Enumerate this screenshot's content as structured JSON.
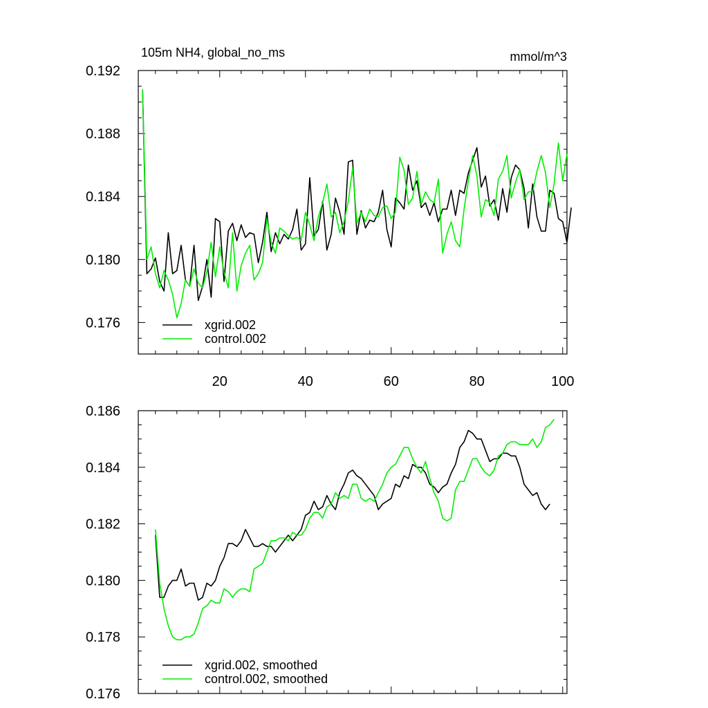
{
  "chart_data": [
    {
      "type": "line",
      "title": "105m NH4, global_no_ms",
      "units": "mmol/m^3",
      "xlabel": "",
      "ylabel": "",
      "xlim": [
        1,
        101
      ],
      "ylim": [
        0.174,
        0.192
      ],
      "yticks": [
        0.176,
        0.18,
        0.184,
        0.188,
        0.192
      ],
      "ytick_labels": [
        "0.176",
        "0.180",
        "0.184",
        "0.188",
        "0.192"
      ],
      "xticks": [
        20,
        40,
        60,
        80,
        100
      ],
      "xtick_labels": [
        "20",
        "40",
        "60",
        "80",
        "100"
      ],
      "legend_position": "bottom-left",
      "series": [
        {
          "name": "xgrid.002",
          "color": "#000000",
          "x_start": 2,
          "values": [
            0.1908,
            0.1791,
            0.1794,
            0.1801,
            0.1786,
            0.178,
            0.1817,
            0.1791,
            0.1793,
            0.1809,
            0.1787,
            0.1783,
            0.1809,
            0.1774,
            0.1783,
            0.18,
            0.1776,
            0.1826,
            0.1824,
            0.1786,
            0.1818,
            0.1823,
            0.1812,
            0.1822,
            0.1814,
            0.1817,
            0.1816,
            0.1798,
            0.1811,
            0.183,
            0.1805,
            0.1817,
            0.181,
            0.1816,
            0.1813,
            0.1819,
            0.1832,
            0.1806,
            0.181,
            0.1852,
            0.1815,
            0.1819,
            0.1837,
            0.1806,
            0.1816,
            0.1839,
            0.183,
            0.1816,
            0.1862,
            0.1863,
            0.1816,
            0.1831,
            0.182,
            0.1825,
            0.1824,
            0.183,
            0.1844,
            0.1819,
            0.1808,
            0.1839,
            0.1836,
            0.1832,
            0.186,
            0.1844,
            0.185,
            0.1833,
            0.1836,
            0.1828,
            0.1836,
            0.1824,
            0.1832,
            0.1832,
            0.1844,
            0.1828,
            0.1844,
            0.1842,
            0.1855,
            0.1863,
            0.1871,
            0.1846,
            0.1853,
            0.1834,
            0.1838,
            0.1825,
            0.1845,
            0.183,
            0.1852,
            0.186,
            0.1857,
            0.1845,
            0.182,
            0.1848,
            0.1827,
            0.1818,
            0.1818,
            0.1844,
            0.1842,
            0.1826,
            0.1824,
            0.1811,
            0.1833
          ]
        },
        {
          "name": "control.002",
          "color": "#00ee00",
          "x_start": 2,
          "values": [
            0.1908,
            0.18,
            0.1808,
            0.1791,
            0.1782,
            0.1793,
            0.1787,
            0.1778,
            0.1763,
            0.1772,
            0.1787,
            0.1783,
            0.1794,
            0.1785,
            0.1782,
            0.1792,
            0.1811,
            0.1789,
            0.1808,
            0.1792,
            0.1782,
            0.1817,
            0.178,
            0.1796,
            0.1804,
            0.1809,
            0.1787,
            0.1791,
            0.1798,
            0.1826,
            0.1811,
            0.1804,
            0.182,
            0.1818,
            0.1815,
            0.1813,
            0.1814,
            0.1812,
            0.183,
            0.1822,
            0.1812,
            0.1827,
            0.1836,
            0.1848,
            0.1827,
            0.183,
            0.1817,
            0.1824,
            0.1837,
            0.1858,
            0.1823,
            0.183,
            0.1824,
            0.1832,
            0.1828,
            0.1827,
            0.1833,
            0.1834,
            0.1826,
            0.183,
            0.1865,
            0.1857,
            0.1835,
            0.1839,
            0.1856,
            0.1835,
            0.1843,
            0.1838,
            0.1836,
            0.1851,
            0.1804,
            0.1816,
            0.1824,
            0.1812,
            0.1808,
            0.1832,
            0.185,
            0.1866,
            0.1853,
            0.1827,
            0.1838,
            0.1836,
            0.1828,
            0.1851,
            0.1856,
            0.1866,
            0.1839,
            0.1849,
            0.1857,
            0.1838,
            0.1843,
            0.1843,
            0.1856,
            0.1866,
            0.1855,
            0.1833,
            0.1848,
            0.1874,
            0.185,
            0.1867
          ]
        }
      ]
    },
    {
      "type": "line",
      "title": "",
      "xlabel": "",
      "ylabel": "",
      "xlim": [
        1,
        101
      ],
      "ylim": [
        0.176,
        0.186
      ],
      "yticks": [
        0.176,
        0.178,
        0.18,
        0.182,
        0.184,
        0.186
      ],
      "ytick_labels": [
        "0.176",
        "0.178",
        "0.180",
        "0.182",
        "0.184",
        "0.186"
      ],
      "xticks": [
        20,
        40,
        60,
        80,
        100
      ],
      "legend_position": "bottom-left",
      "series": [
        {
          "name": "xgrid.002, smoothed",
          "color": "#000000",
          "x_start": 5,
          "values": [
            0.1816,
            0.1794,
            0.1794,
            0.1798,
            0.18,
            0.18,
            0.1804,
            0.1798,
            0.1799,
            0.1799,
            0.1793,
            0.1794,
            0.1799,
            0.1798,
            0.18,
            0.1805,
            0.1808,
            0.1813,
            0.1813,
            0.1812,
            0.1814,
            0.1818,
            0.1815,
            0.1812,
            0.1812,
            0.1813,
            0.1812,
            0.1812,
            0.181,
            0.1812,
            0.1814,
            0.1816,
            0.1814,
            0.1816,
            0.1818,
            0.1823,
            0.1824,
            0.1828,
            0.1825,
            0.1826,
            0.183,
            0.1827,
            0.1825,
            0.1831,
            0.1834,
            0.1838,
            0.1839,
            0.1837,
            0.1836,
            0.1834,
            0.1832,
            0.183,
            0.1825,
            0.1827,
            0.1828,
            0.1829,
            0.1834,
            0.1833,
            0.1837,
            0.1836,
            0.1841,
            0.184,
            0.184,
            0.1838,
            0.1834,
            0.1833,
            0.1831,
            0.1833,
            0.1834,
            0.1838,
            0.1841,
            0.1847,
            0.1849,
            0.1853,
            0.1852,
            0.185,
            0.185,
            0.1846,
            0.1842,
            0.1843,
            0.1843,
            0.1845,
            0.1845,
            0.1844,
            0.1844,
            0.184,
            0.1834,
            0.1832,
            0.183,
            0.1831,
            0.1827,
            0.1825,
            0.1827
          ]
        },
        {
          "name": "control.002, smoothed",
          "color": "#00ee00",
          "x_start": 5,
          "values": [
            0.1818,
            0.1799,
            0.179,
            0.1784,
            0.178,
            0.1779,
            0.1779,
            0.178,
            0.178,
            0.1781,
            0.1785,
            0.179,
            0.1791,
            0.1793,
            0.1792,
            0.1792,
            0.1797,
            0.1796,
            0.1794,
            0.1796,
            0.1797,
            0.1797,
            0.1796,
            0.1804,
            0.1805,
            0.1806,
            0.181,
            0.1814,
            0.1814,
            0.1815,
            0.1815,
            0.1814,
            0.1817,
            0.1816,
            0.1816,
            0.1818,
            0.1822,
            0.1824,
            0.1824,
            0.1822,
            0.1826,
            0.1827,
            0.1831,
            0.1829,
            0.183,
            0.1829,
            0.1834,
            0.1834,
            0.1829,
            0.1828,
            0.1829,
            0.1828,
            0.1831,
            0.1834,
            0.1838,
            0.184,
            0.1841,
            0.1844,
            0.1847,
            0.1847,
            0.1843,
            0.184,
            0.1838,
            0.1842,
            0.1836,
            0.1831,
            0.1828,
            0.1822,
            0.1821,
            0.1822,
            0.1832,
            0.1835,
            0.1835,
            0.1839,
            0.1843,
            0.1843,
            0.184,
            0.1838,
            0.1837,
            0.1839,
            0.1844,
            0.1845,
            0.1848,
            0.1849,
            0.1849,
            0.1848,
            0.1848,
            0.1848,
            0.185,
            0.1847,
            0.1849,
            0.1854,
            0.1855,
            0.1857
          ]
        }
      ]
    }
  ]
}
